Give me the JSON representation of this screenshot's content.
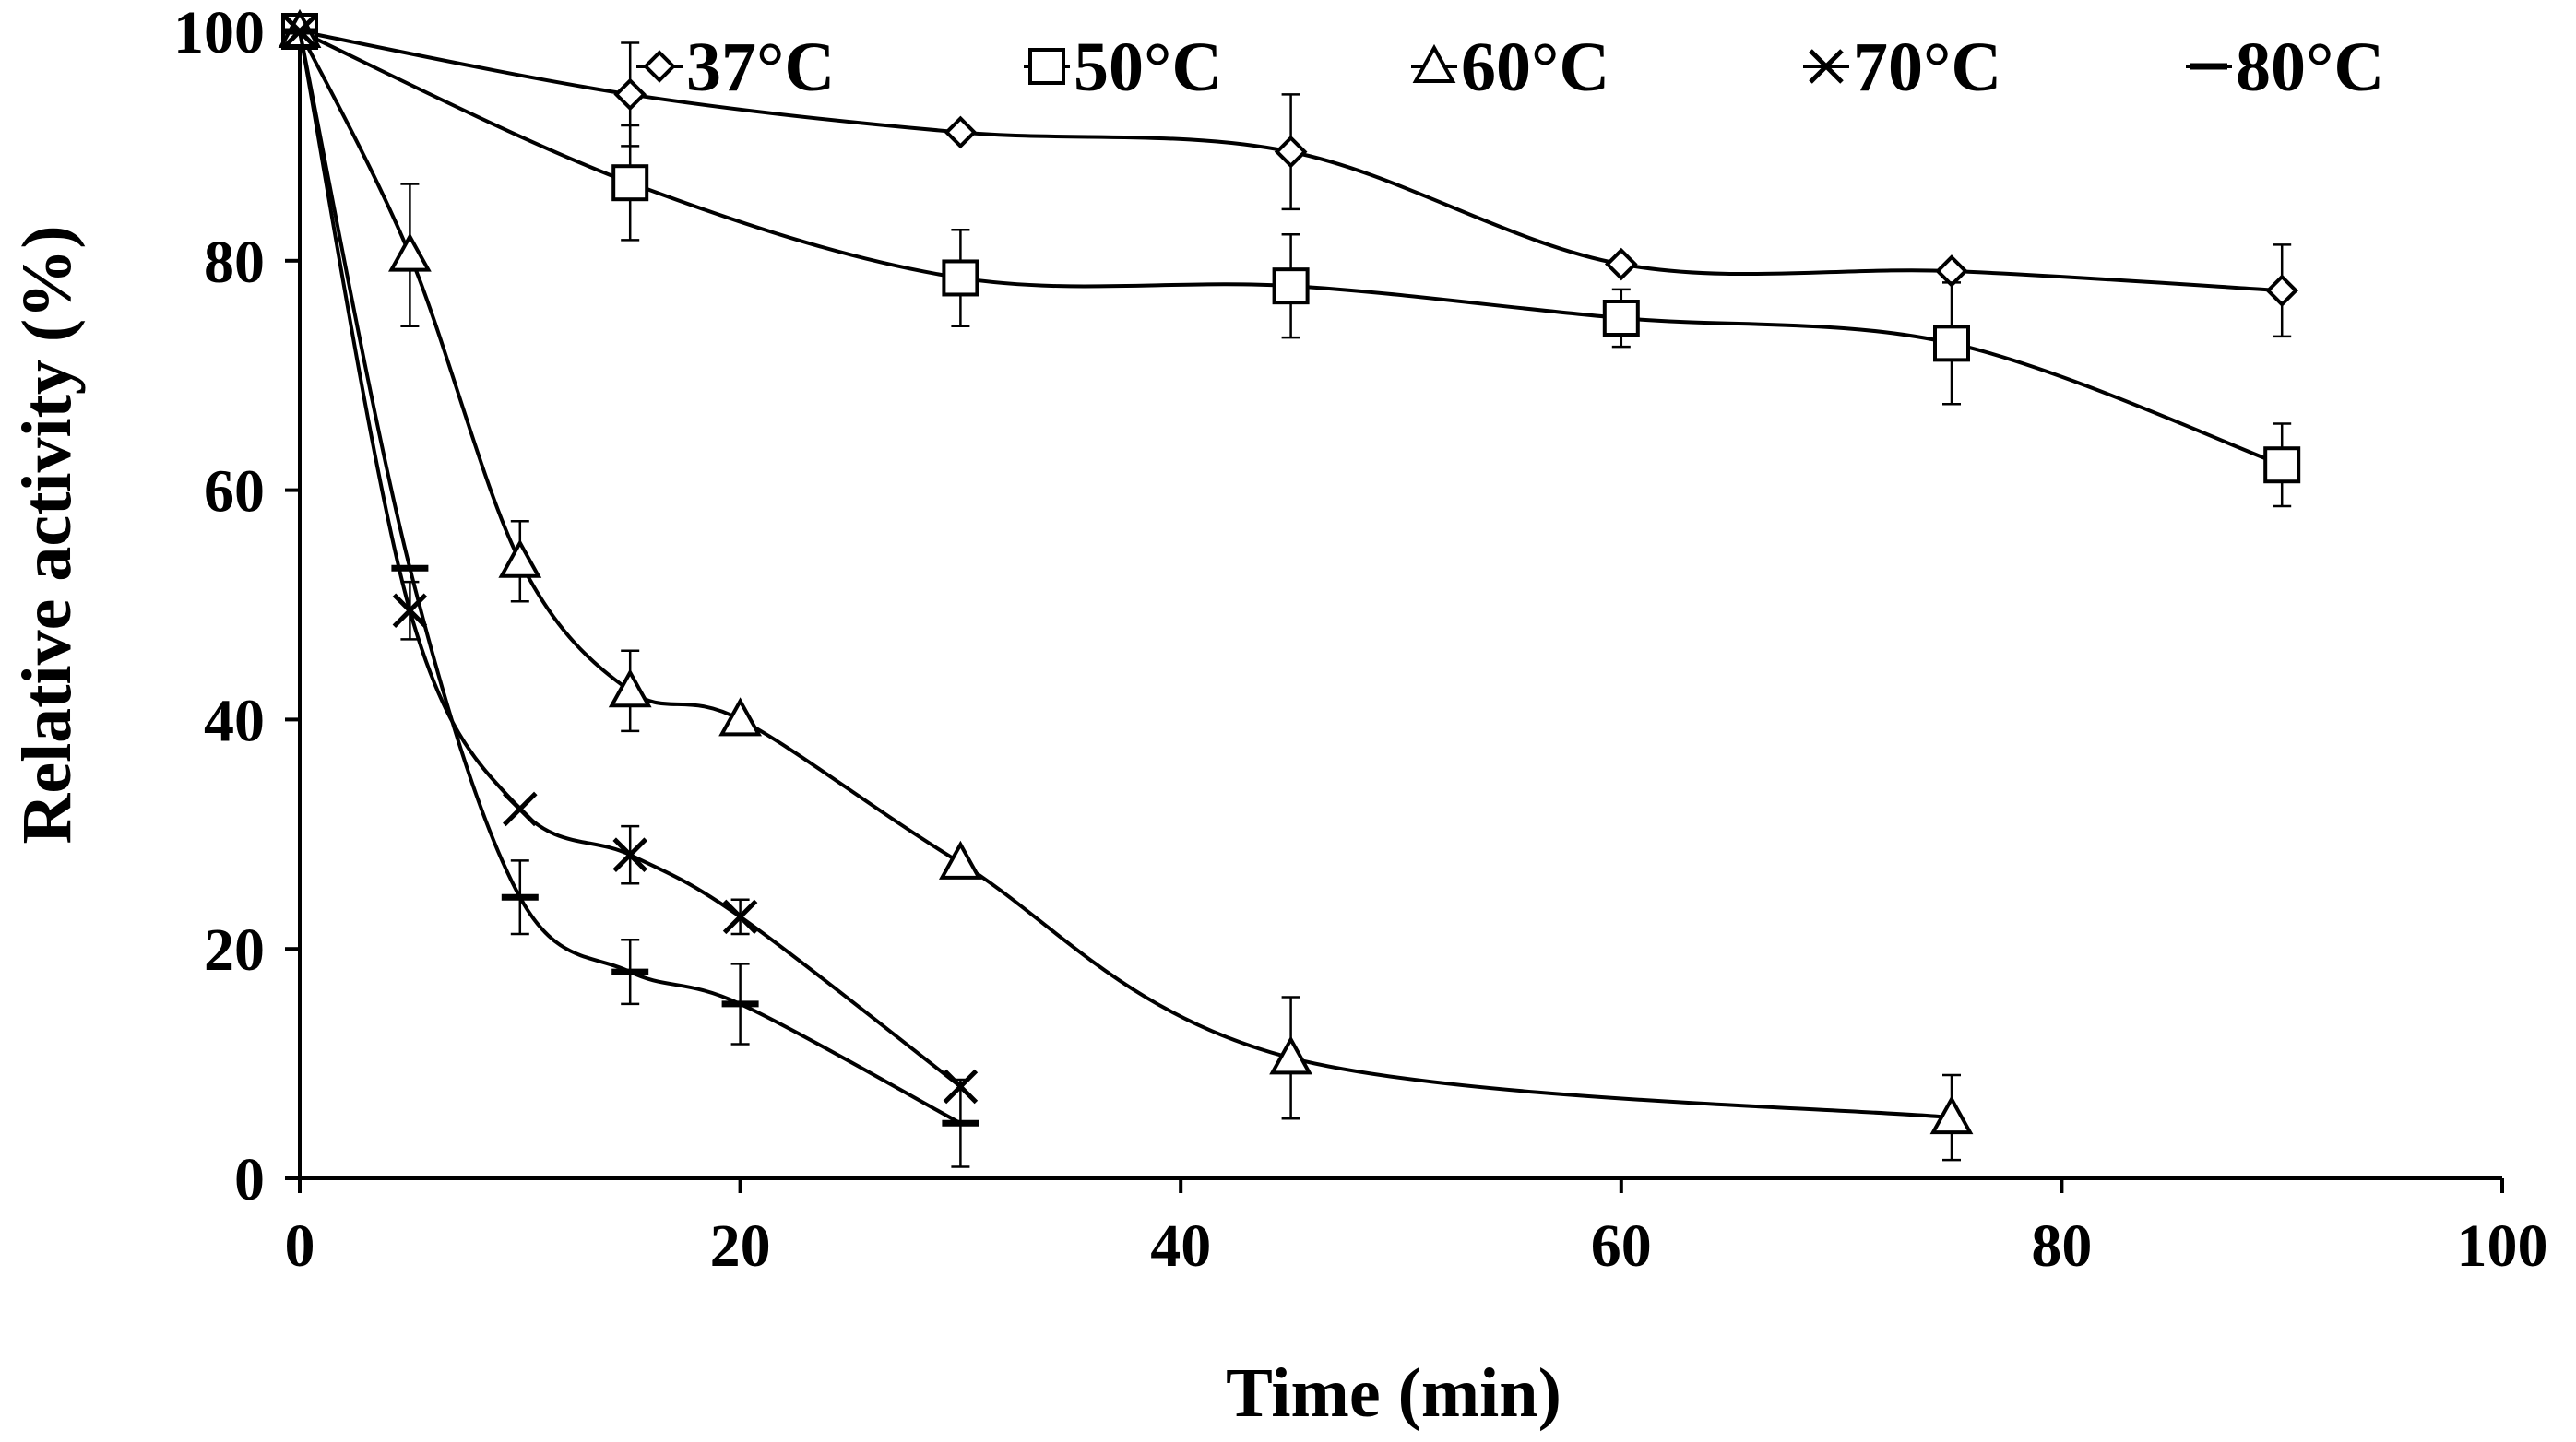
{
  "chart_data": {
    "type": "line",
    "title": "",
    "xlabel": "Time (min)",
    "ylabel": "Relative activity (%)",
    "xlim": [
      0,
      100
    ],
    "ylim": [
      0,
      100
    ],
    "xticks": [
      0,
      20,
      40,
      60,
      80,
      100
    ],
    "yticks": [
      0,
      20,
      40,
      60,
      80,
      100
    ],
    "grid": false,
    "legend_position": "top",
    "series": [
      {
        "name": "37°C",
        "marker": "diamond",
        "x": [
          0,
          15,
          30,
          45,
          60,
          75,
          90
        ],
        "y": [
          100,
          94.5,
          91.2,
          89.5,
          79.7,
          79.1,
          77.4
        ],
        "err": [
          0,
          4.5,
          0,
          5.0,
          0,
          0,
          4.0
        ]
      },
      {
        "name": "50°C",
        "marker": "square",
        "x": [
          0,
          15,
          30,
          45,
          60,
          75,
          90
        ],
        "y": [
          100,
          86.8,
          78.5,
          77.8,
          75.0,
          72.8,
          62.2
        ],
        "err": [
          0,
          5.0,
          4.2,
          4.5,
          2.5,
          5.3,
          3.6
        ]
      },
      {
        "name": "60°C",
        "marker": "triangle",
        "x": [
          0,
          5,
          10,
          15,
          20,
          30,
          45,
          75
        ],
        "y": [
          100,
          80.5,
          53.8,
          42.5,
          40.0,
          27.5,
          10.5,
          5.3
        ],
        "err": [
          0,
          6.2,
          3.5,
          3.5,
          0,
          0,
          5.3,
          3.7
        ]
      },
      {
        "name": "70°C",
        "marker": "x",
        "x": [
          0,
          5,
          10,
          15,
          20,
          30
        ],
        "y": [
          100,
          49.5,
          32.2,
          28.2,
          22.8,
          8.0
        ],
        "err": [
          0,
          2.5,
          0,
          2.5,
          1.5,
          0
        ]
      },
      {
        "name": "80°C",
        "marker": "dash",
        "x": [
          0,
          5,
          10,
          15,
          20,
          30
        ],
        "y": [
          100,
          53.2,
          24.5,
          18.0,
          15.2,
          4.8
        ],
        "err": [
          0,
          0,
          3.2,
          2.8,
          3.5,
          3.8
        ]
      }
    ]
  }
}
